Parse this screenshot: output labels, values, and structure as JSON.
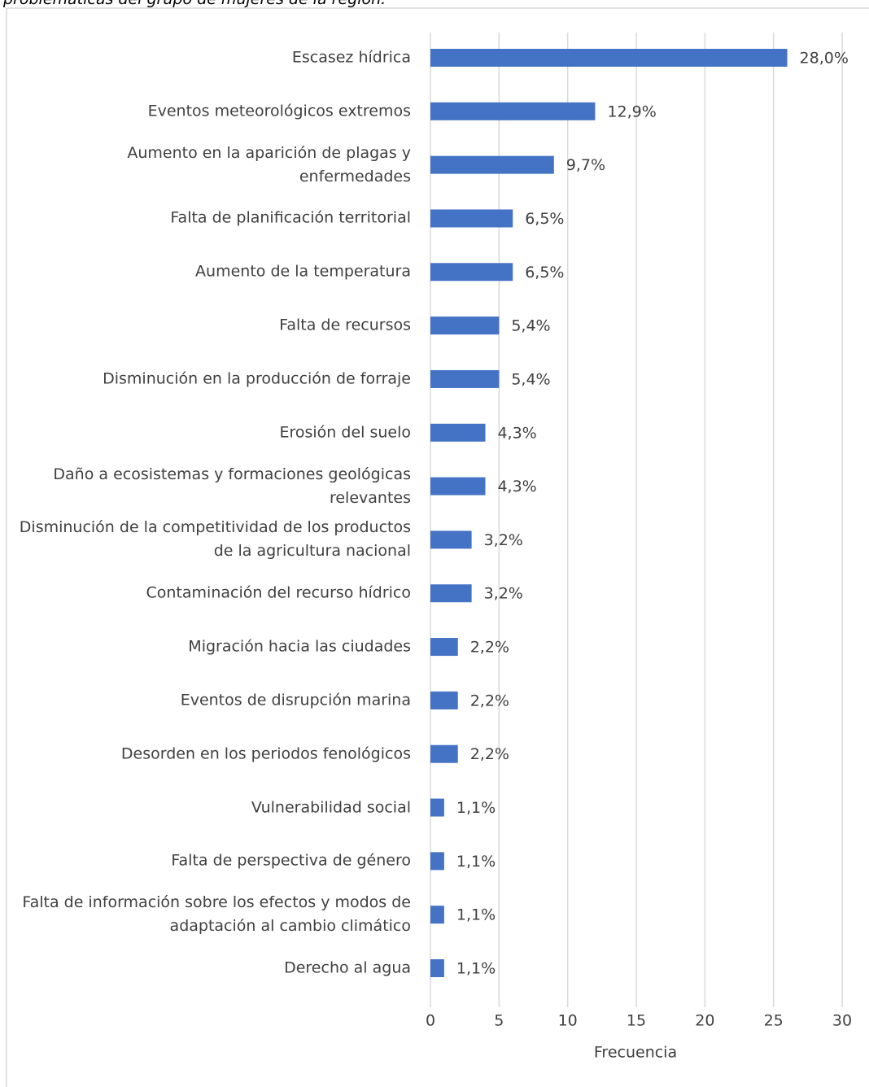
{
  "chart_data": {
    "type": "bar",
    "orientation": "horizontal",
    "title": "problemáticas del grupo de mujeres de la región.",
    "x_label": "Frecuencia",
    "categories": [
      "Escasez hídrica",
      "Eventos meteorológicos extremos",
      "Aumento en la aparición de plagas y enfermedades",
      "Falta de planificación territorial",
      "Aumento de la temperatura",
      "Falta de recursos",
      "Disminución en la producción de forraje",
      "Erosión del suelo",
      "Daño a ecosistemas y formaciones geológicas relevantes",
      "Disminución de la competitividad de los productos de la agricultura nacional",
      "Contaminación del recurso hídrico",
      "Migración hacia las ciudades",
      "Eventos de disrupción marina",
      "Desorden en los periodos fenológicos",
      "Vulnerabilidad social",
      "Falta de perspectiva de género",
      "Falta de información sobre los efectos y modos de adaptación al cambio climático",
      "Derecho al agua"
    ],
    "values": [
      26,
      12,
      9,
      6,
      6,
      5,
      5,
      4,
      4,
      3,
      3,
      2,
      2,
      2,
      1,
      1,
      1,
      1
    ],
    "value_labels": [
      "28,0%",
      "12,9%",
      "9,7%",
      "6,5%",
      "6,5%",
      "5,4%",
      "5,4%",
      "4,3%",
      "4,3%",
      "3,2%",
      "3,2%",
      "2,2%",
      "2,2%",
      "2,2%",
      "1,1%",
      "1,1%",
      "1,1%",
      "1,1%"
    ],
    "color": "#4472c4",
    "xlim": [
      0,
      30
    ],
    "xticks": [
      0,
      5,
      10,
      15,
      20,
      25,
      30
    ],
    "grid": true
  }
}
